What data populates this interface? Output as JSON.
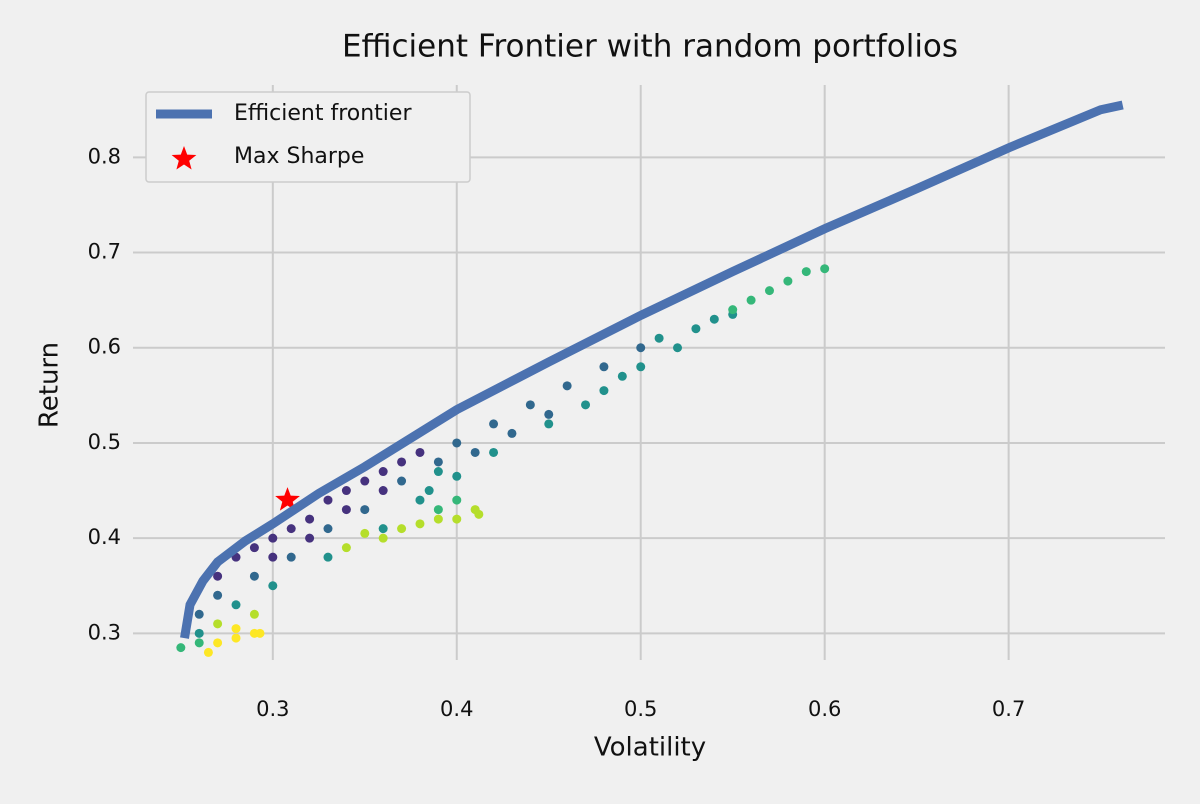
{
  "chart_data": {
    "type": "scatter",
    "title": "Efficient Frontier with random portfolios",
    "x_label": "Volatility",
    "y_label": "Return",
    "xlim": [
      0.224,
      0.785
    ],
    "ylim": [
      0.272,
      0.876
    ],
    "xticks": [
      0.3,
      0.4,
      0.5,
      0.6,
      0.7
    ],
    "yticks": [
      0.3,
      0.4,
      0.5,
      0.6,
      0.7,
      0.8
    ],
    "grid": true,
    "legend": "upper left",
    "series": [
      {
        "name": "Efficient frontier",
        "type": "line",
        "color": "#4c72b0",
        "x": [
          0.252,
          0.255,
          0.262,
          0.27,
          0.285,
          0.3,
          0.325,
          0.35,
          0.4,
          0.45,
          0.5,
          0.55,
          0.6,
          0.65,
          0.7,
          0.75,
          0.762
        ],
        "values": [
          0.295,
          0.33,
          0.355,
          0.375,
          0.397,
          0.415,
          0.447,
          0.475,
          0.535,
          0.585,
          0.634,
          0.68,
          0.725,
          0.767,
          0.81,
          0.85,
          0.855
        ]
      },
      {
        "name": "Max Sharpe",
        "type": "star",
        "color": "#ff0000",
        "x": [
          0.308
        ],
        "values": [
          0.44
        ]
      }
    ],
    "points": [
      {
        "color": "#46327e",
        "x": [
          0.27,
          0.28,
          0.29,
          0.3,
          0.31,
          0.32,
          0.33,
          0.34,
          0.35,
          0.36,
          0.37,
          0.3,
          0.32,
          0.34,
          0.36,
          0.38
        ],
        "values": [
          0.36,
          0.38,
          0.39,
          0.4,
          0.41,
          0.42,
          0.44,
          0.45,
          0.46,
          0.47,
          0.48,
          0.38,
          0.4,
          0.43,
          0.45,
          0.49
        ]
      },
      {
        "color": "#31688e",
        "x": [
          0.26,
          0.27,
          0.29,
          0.31,
          0.33,
          0.35,
          0.37,
          0.39,
          0.4,
          0.42,
          0.44,
          0.46,
          0.41,
          0.43,
          0.45,
          0.48,
          0.5
        ],
        "values": [
          0.32,
          0.34,
          0.36,
          0.38,
          0.41,
          0.43,
          0.46,
          0.48,
          0.5,
          0.52,
          0.54,
          0.56,
          0.49,
          0.51,
          0.53,
          0.58,
          0.6
        ]
      },
      {
        "color": "#21918c",
        "x": [
          0.26,
          0.28,
          0.3,
          0.33,
          0.36,
          0.38,
          0.39,
          0.4,
          0.42,
          0.45,
          0.47,
          0.49,
          0.5,
          0.52,
          0.53,
          0.54,
          0.55,
          0.51,
          0.48,
          0.385
        ],
        "values": [
          0.3,
          0.33,
          0.35,
          0.38,
          0.41,
          0.44,
          0.47,
          0.465,
          0.49,
          0.52,
          0.54,
          0.57,
          0.58,
          0.6,
          0.62,
          0.63,
          0.635,
          0.61,
          0.555,
          0.45
        ]
      },
      {
        "color": "#35b779",
        "x": [
          0.55,
          0.56,
          0.57,
          0.58,
          0.59,
          0.6,
          0.25,
          0.26,
          0.4,
          0.39
        ],
        "values": [
          0.64,
          0.65,
          0.66,
          0.67,
          0.68,
          0.683,
          0.285,
          0.29,
          0.44,
          0.43
        ]
      },
      {
        "color": "#b5de2b",
        "x": [
          0.34,
          0.36,
          0.37,
          0.38,
          0.4,
          0.41,
          0.412,
          0.27,
          0.29,
          0.35,
          0.39
        ],
        "values": [
          0.39,
          0.4,
          0.41,
          0.415,
          0.42,
          0.43,
          0.425,
          0.31,
          0.32,
          0.405,
          0.42
        ]
      },
      {
        "color": "#fde725",
        "x": [
          0.265,
          0.27,
          0.28,
          0.29,
          0.293,
          0.28
        ],
        "values": [
          0.28,
          0.29,
          0.295,
          0.3,
          0.3,
          0.305
        ]
      }
    ]
  }
}
